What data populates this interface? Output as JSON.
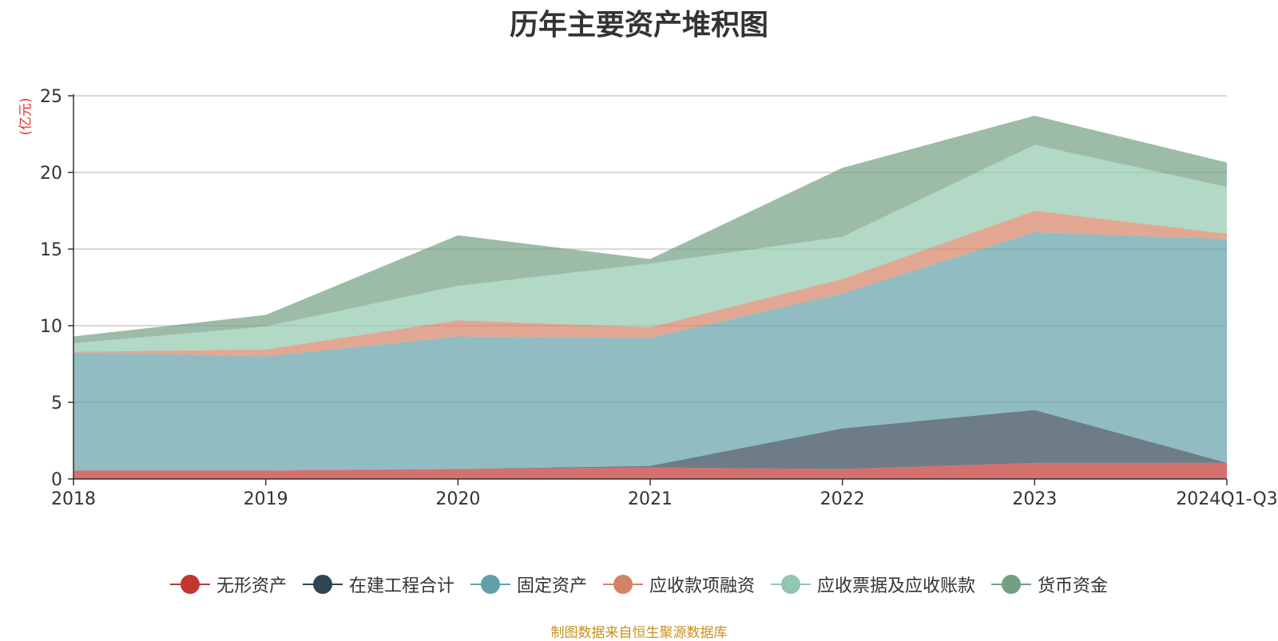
{
  "chart_data": {
    "type": "area",
    "stacked": true,
    "title": "历年主要资产堆积图",
    "unit": "(亿元)",
    "categories": [
      "2018",
      "2019",
      "2020",
      "2021",
      "2022",
      "2023",
      "2024Q1-Q3"
    ],
    "ylim": [
      0,
      25
    ],
    "yticks": [
      "0",
      "5",
      "10",
      "15",
      "20",
      "25"
    ],
    "grid": true,
    "legend_position": "bottom",
    "series": [
      {
        "name": "无形资产",
        "color": "#c23531",
        "values": [
          0.55,
          0.55,
          0.65,
          0.75,
          0.65,
          1.05,
          1.05
        ]
      },
      {
        "name": "在建工程合计",
        "color": "#2f4554",
        "values": [
          0.0,
          0.0,
          0.0,
          0.1,
          2.65,
          3.45,
          0.0
        ]
      },
      {
        "name": "固定资产",
        "color": "#61a0a8",
        "values": [
          7.7,
          7.45,
          8.65,
          8.35,
          8.8,
          11.6,
          14.6
        ]
      },
      {
        "name": "应收款项融资",
        "color": "#d48265",
        "values": [
          0.05,
          0.45,
          1.05,
          0.7,
          0.95,
          1.4,
          0.35
        ]
      },
      {
        "name": "应收票据及应收账款",
        "color": "#91c7ae",
        "values": [
          0.55,
          1.5,
          2.25,
          4.15,
          2.75,
          4.3,
          3.05
        ]
      },
      {
        "name": "货币资金",
        "color": "#749f83",
        "values": [
          0.45,
          0.75,
          3.3,
          0.3,
          4.5,
          1.9,
          1.6
        ]
      }
    ]
  },
  "source_note": "制图数据来自恒生聚源数据库"
}
